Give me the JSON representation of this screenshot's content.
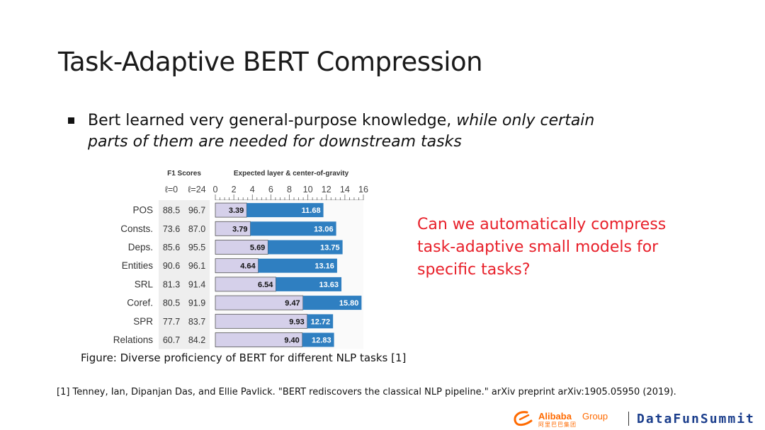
{
  "slide": {
    "title": "Task-Adaptive BERT Compression",
    "bullet": {
      "plain": "Bert learned very general-purpose knowledge, ",
      "italic": "while only certain parts of them are needed for downstream tasks"
    },
    "question": "Can we automatically compress task-adaptive small models for specific tasks?",
    "caption": "Figure: Diverse proficiency of BERT for different NLP tasks [1]",
    "citation": "[1] Tenney, Ian, Dipanjan Das, and Ellie Pavlick. \"BERT rediscovers the classical NLP pipeline.\" arXiv preprint arXiv:1905.05950 (2019).",
    "logos": {
      "alibaba_word": "Alibaba",
      "alibaba_group": "Group",
      "alibaba_cn": "阿里巴巴集团",
      "datafun": "DataFunSummit"
    }
  },
  "chart_data": {
    "type": "bar",
    "f1_header": "F1 Scores",
    "layer_header": "Expected layer & center-of-gravity",
    "f1_columns": [
      "ℓ=0",
      "ℓ=24"
    ],
    "xlim": [
      0,
      16
    ],
    "ticks": [
      0,
      2,
      4,
      6,
      8,
      10,
      12,
      14,
      16
    ],
    "tasks": [
      {
        "name": "POS",
        "f1_l0": "88.5",
        "f1_l24": "96.7",
        "center_of_gravity": 3.39,
        "expected_layer": 11.68
      },
      {
        "name": "Consts.",
        "f1_l0": "73.6",
        "f1_l24": "87.0",
        "center_of_gravity": 3.79,
        "expected_layer": 13.06
      },
      {
        "name": "Deps.",
        "f1_l0": "85.6",
        "f1_l24": "95.5",
        "center_of_gravity": 5.69,
        "expected_layer": 13.75
      },
      {
        "name": "Entities",
        "f1_l0": "90.6",
        "f1_l24": "96.1",
        "center_of_gravity": 4.64,
        "expected_layer": 13.16
      },
      {
        "name": "SRL",
        "f1_l0": "81.3",
        "f1_l24": "91.4",
        "center_of_gravity": 6.54,
        "expected_layer": 13.63
      },
      {
        "name": "Coref.",
        "f1_l0": "80.5",
        "f1_l24": "91.9",
        "center_of_gravity": 9.47,
        "expected_layer": 15.8
      },
      {
        "name": "SPR",
        "f1_l0": "77.7",
        "f1_l24": "83.7",
        "center_of_gravity": 9.93,
        "expected_layer": 12.72
      },
      {
        "name": "Relations",
        "f1_l0": "60.7",
        "f1_l24": "84.2",
        "center_of_gravity": 9.4,
        "expected_layer": 12.83
      }
    ],
    "colors": {
      "center_of_gravity": "#d5d0ea",
      "expected_layer": "#2f7fc1",
      "f1_cell": "#eeeeee"
    }
  }
}
